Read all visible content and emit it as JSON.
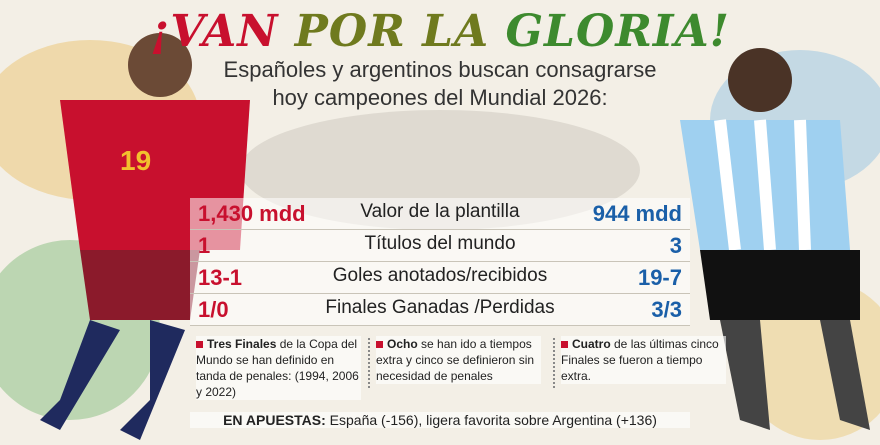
{
  "header": {
    "title_parts": [
      "¡VAN ",
      "POR LA ",
      "GLORIA!"
    ],
    "subtitle_lines": [
      "Españoles y argentinos buscan consagrarse",
      "hoy campeones del Mundial 2026:"
    ]
  },
  "table": {
    "rows": [
      [
        "1,430 mdd",
        "Valor de la plantilla",
        "944 mdd"
      ],
      [
        "1",
        "Títulos del mundo",
        "3"
      ],
      [
        "13-1",
        "Goles anotados/recibidos",
        "19-7"
      ],
      [
        "1/0",
        "Finales Ganadas /Perdidas",
        "3/3"
      ]
    ]
  },
  "notes": [
    {
      "bold": "Tres Finales",
      "text": " de la Copa del Mundo se han definido en tanda de penales: (1994, 2006 y 2022)"
    },
    {
      "bold": "Ocho",
      "text": " se han ido a tiempos extra y cinco se definieron sin necesidad de penales"
    },
    {
      "bold": "Cuatro",
      "text": " de las últimas cinco Finales se fueron a tiempo extra."
    }
  ],
  "footer": {
    "bold": "EN APUESTAS:",
    "text": " España (-156), ligera favorita sobre Argentina (+136)"
  }
}
